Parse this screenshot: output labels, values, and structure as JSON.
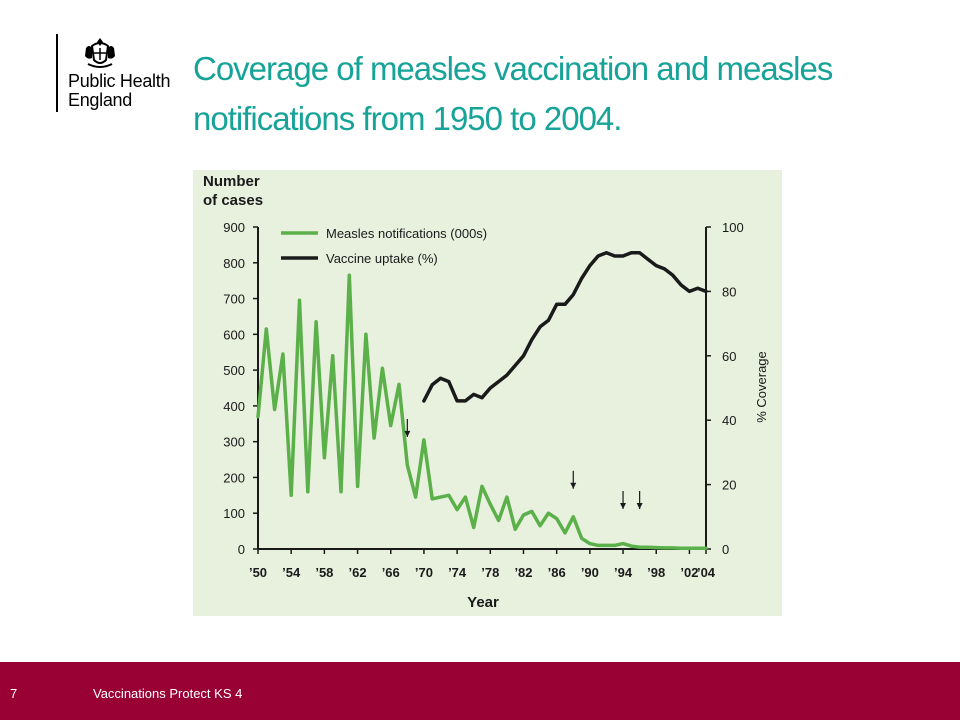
{
  "logo": {
    "line1": "Public Health",
    "line2": "England",
    "emblem": "royal-crest-icon"
  },
  "title": {
    "line1": "Coverage of measles vaccination and measles",
    "line2": "notifications from 1950 to 2004."
  },
  "footer": {
    "page_number": "7",
    "text": "Vaccinations Protect KS 4"
  },
  "colors": {
    "title": "#17a398",
    "footer": "#990033",
    "chart_bg": "#e8f0de",
    "notifications": "#5bb04a",
    "uptake": "#1a1a1a"
  },
  "chart_data": {
    "type": "line",
    "ylabel_left_line1": "Number",
    "ylabel_left_line2": "of cases",
    "ylabel_right": "% Coverage",
    "xlabel": "Year",
    "xlim": [
      1950,
      2004
    ],
    "ylim_left": [
      0,
      900
    ],
    "ylim_right": [
      0,
      100
    ],
    "left_ticks": [
      "0",
      "100",
      "200",
      "300",
      "400",
      "500",
      "600",
      "700",
      "800",
      "900"
    ],
    "right_ticks": [
      "0",
      "20",
      "40",
      "60",
      "80",
      "100"
    ],
    "x_tick_values": [
      1950,
      1954,
      1958,
      1962,
      1966,
      1970,
      1974,
      1978,
      1982,
      1986,
      1990,
      1994,
      1998,
      2002,
      2004
    ],
    "x_tick_labels": [
      "’50",
      "’54",
      "’58",
      "’62",
      "’66",
      "’70",
      "’74",
      "’78",
      "’82",
      "’86",
      "’90",
      "’94",
      "’98",
      "’02",
      "’04"
    ],
    "grid": false,
    "legend_position": "top-left",
    "series": [
      {
        "name": "Measles notifications (000s)",
        "axis": "left",
        "x": [
          1950,
          1951,
          1952,
          1953,
          1954,
          1955,
          1956,
          1957,
          1958,
          1959,
          1960,
          1961,
          1962,
          1963,
          1964,
          1965,
          1966,
          1967,
          1968,
          1969,
          1970,
          1971,
          1972,
          1973,
          1974,
          1975,
          1976,
          1977,
          1978,
          1979,
          1980,
          1981,
          1982,
          1983,
          1984,
          1985,
          1986,
          1987,
          1988,
          1989,
          1990,
          1991,
          1992,
          1993,
          1994,
          1995,
          1996,
          1997,
          1998,
          1999,
          2000,
          2001,
          2002,
          2003,
          2004
        ],
        "values": [
          370,
          615,
          390,
          545,
          150,
          695,
          160,
          635,
          255,
          540,
          160,
          765,
          175,
          600,
          310,
          505,
          345,
          460,
          235,
          145,
          305,
          140,
          145,
          150,
          110,
          145,
          60,
          175,
          125,
          80,
          145,
          55,
          95,
          105,
          65,
          100,
          85,
          45,
          90,
          30,
          15,
          10,
          10,
          10,
          15,
          8,
          5,
          5,
          4,
          3,
          3,
          2,
          2,
          2,
          2
        ]
      },
      {
        "name": "Vaccine uptake (%)",
        "axis": "right",
        "x": [
          1970,
          1971,
          1972,
          1973,
          1974,
          1975,
          1976,
          1977,
          1978,
          1979,
          1980,
          1981,
          1982,
          1983,
          1984,
          1985,
          1986,
          1987,
          1988,
          1989,
          1990,
          1991,
          1992,
          1993,
          1994,
          1995,
          1996,
          1997,
          1998,
          1999,
          2000,
          2001,
          2002,
          2003,
          2004
        ],
        "values": [
          46,
          51,
          53,
          52,
          46,
          46,
          48,
          47,
          50,
          52,
          54,
          57,
          60,
          65,
          69,
          71,
          76,
          76,
          79,
          84,
          88,
          91,
          92,
          91,
          91,
          92,
          92,
          90,
          88,
          87,
          85,
          82,
          80,
          81,
          80
        ]
      }
    ],
    "arrow_years": [
      1968,
      1988,
      1994,
      1996
    ]
  }
}
